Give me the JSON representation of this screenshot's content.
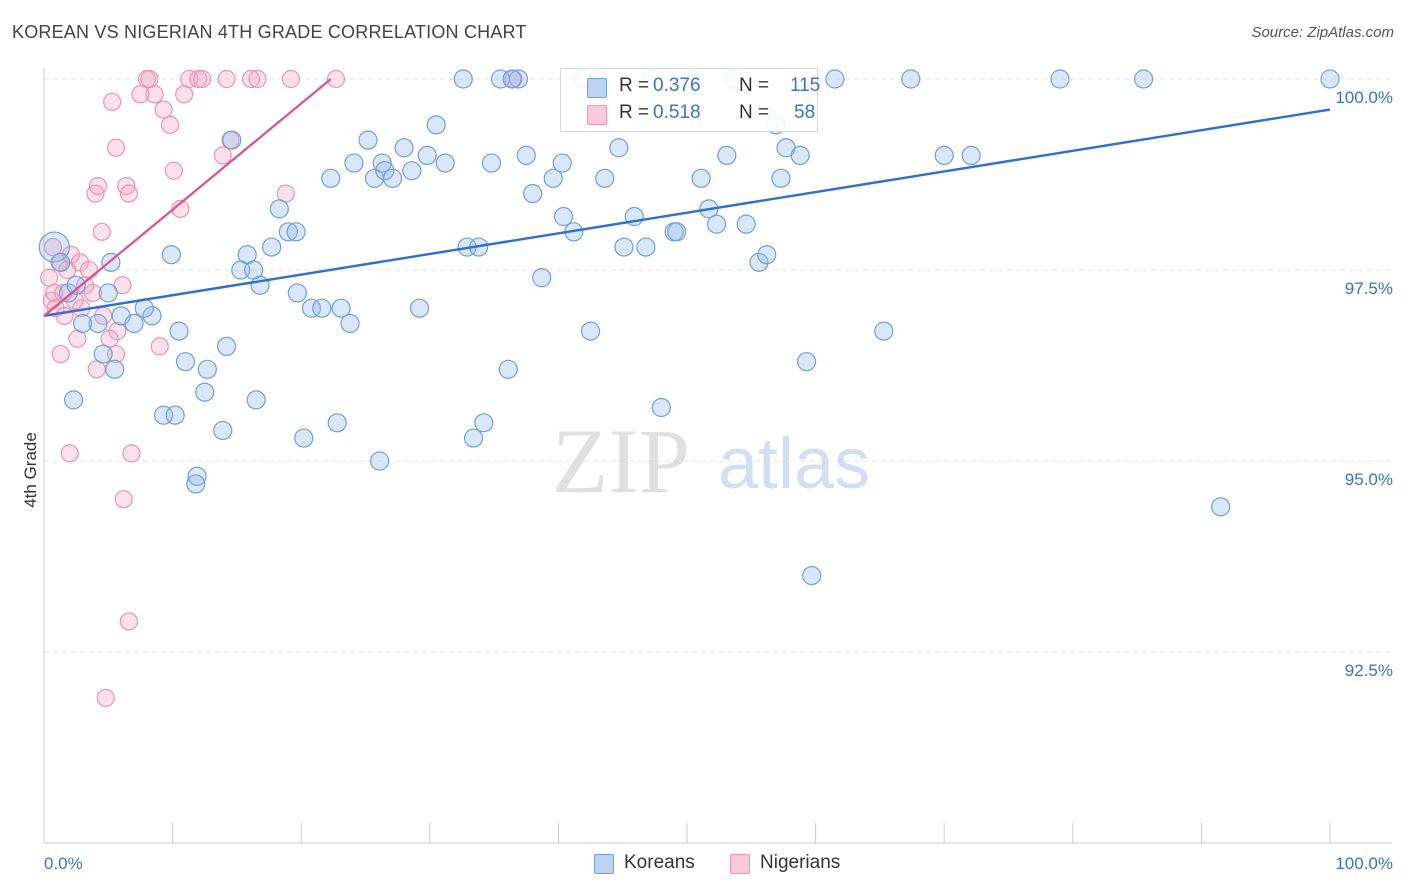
{
  "title": "KOREAN VS NIGERIAN 4TH GRADE CORRELATION CHART",
  "source": "Source: ZipAtlas.com",
  "watermark": {
    "zip": "ZIP",
    "atlas": "atlas"
  },
  "legend_top": {
    "rows": [
      {
        "r_label": "R =",
        "r_value": "0.376",
        "n_label": "N =",
        "n_value": "115"
      },
      {
        "r_label": "R =",
        "r_value": "0.518",
        "n_label": "N =",
        "n_value": "58"
      }
    ]
  },
  "legend_bottom": {
    "koreans": "Koreans",
    "nigerians": "Nigerians"
  },
  "chart_data": {
    "type": "scatter",
    "title": "KOREAN VS NIGERIAN 4TH GRADE CORRELATION CHART",
    "xlabel": "",
    "ylabel": "4th Grade",
    "xlim": [
      0,
      100
    ],
    "ylim": [
      90.2,
      100.2
    ],
    "x_tick_labels": [
      "0.0%",
      "100.0%"
    ],
    "y_ticks": [
      92.5,
      95.0,
      97.5,
      100.0
    ],
    "y_tick_labels": [
      "92.5%",
      "95.0%",
      "97.5%",
      "100.0%"
    ],
    "colors": {
      "koreans": "#6f9fe0",
      "nigerians": "#ef93b3",
      "koreans_line": "#2f6fd0",
      "nigerians_line": "#e0508a",
      "tick_label": "#3b73c9"
    },
    "series": [
      {
        "name": "Koreans",
        "r": 0.376,
        "n": 115,
        "trend": {
          "x1": 0,
          "y1": 96.9,
          "x2": 100,
          "y2": 99.6
        },
        "points": [
          [
            0.8,
            97.8
          ],
          [
            1.3,
            97.6
          ],
          [
            1.9,
            97.2
          ],
          [
            2.5,
            97.3
          ],
          [
            4.2,
            96.8
          ],
          [
            4.6,
            96.4
          ],
          [
            5.0,
            97.2
          ],
          [
            6.0,
            96.9
          ],
          [
            7.0,
            96.8
          ],
          [
            8.4,
            96.9
          ],
          [
            3.0,
            96.8
          ],
          [
            2.3,
            95.8
          ],
          [
            5.5,
            96.2
          ],
          [
            9.3,
            95.6
          ],
          [
            10.2,
            95.6
          ],
          [
            10.5,
            96.7
          ],
          [
            11.0,
            96.3
          ],
          [
            12.5,
            95.9
          ],
          [
            12.7,
            96.2
          ],
          [
            13.9,
            95.4
          ],
          [
            14.2,
            96.5
          ],
          [
            9.9,
            97.7
          ],
          [
            11.9,
            94.8
          ],
          [
            11.8,
            94.7
          ],
          [
            15.3,
            97.5
          ],
          [
            15.8,
            97.7
          ],
          [
            16.3,
            97.5
          ],
          [
            16.8,
            97.3
          ],
          [
            16.5,
            95.8
          ],
          [
            17.7,
            97.8
          ],
          [
            18.3,
            98.3
          ],
          [
            19.0,
            98.0
          ],
          [
            19.6,
            98.0
          ],
          [
            19.7,
            97.2
          ],
          [
            20.2,
            95.3
          ],
          [
            20.8,
            97.0
          ],
          [
            21.6,
            97.0
          ],
          [
            22.3,
            98.7
          ],
          [
            23.1,
            97.0
          ],
          [
            23.8,
            96.8
          ],
          [
            24.1,
            98.9
          ],
          [
            25.2,
            99.2
          ],
          [
            25.7,
            98.7
          ],
          [
            26.3,
            98.9
          ],
          [
            26.5,
            98.8
          ],
          [
            27.1,
            98.7
          ],
          [
            26.1,
            95.0
          ],
          [
            22.8,
            95.5
          ],
          [
            28.0,
            99.1
          ],
          [
            28.6,
            98.8
          ],
          [
            29.2,
            97.0
          ],
          [
            29.8,
            99.0
          ],
          [
            30.5,
            99.4
          ],
          [
            31.2,
            98.9
          ],
          [
            32.6,
            100.0
          ],
          [
            32.9,
            97.8
          ],
          [
            33.4,
            95.3
          ],
          [
            33.8,
            97.8
          ],
          [
            34.2,
            95.5
          ],
          [
            34.8,
            98.9
          ],
          [
            35.5,
            100.0
          ],
          [
            36.1,
            96.2
          ],
          [
            36.9,
            100.0
          ],
          [
            37.5,
            99.0
          ],
          [
            38.0,
            98.5
          ],
          [
            38.7,
            97.4
          ],
          [
            39.6,
            98.7
          ],
          [
            40.3,
            98.9
          ],
          [
            40.4,
            98.2
          ],
          [
            41.2,
            98.0
          ],
          [
            41.9,
            100.0
          ],
          [
            42.5,
            96.7
          ],
          [
            43.0,
            100.0
          ],
          [
            43.6,
            98.7
          ],
          [
            44.7,
            99.1
          ],
          [
            45.1,
            97.8
          ],
          [
            45.9,
            98.2
          ],
          [
            46.8,
            97.8
          ],
          [
            47.3,
            100.0
          ],
          [
            48.0,
            95.7
          ],
          [
            49.0,
            98.0
          ],
          [
            49.2,
            98.0
          ],
          [
            50.5,
            100.0
          ],
          [
            51.1,
            98.7
          ],
          [
            51.7,
            98.3
          ],
          [
            52.3,
            98.1
          ],
          [
            53.1,
            99.0
          ],
          [
            53.7,
            100.0
          ],
          [
            54.6,
            98.1
          ],
          [
            55.6,
            97.6
          ],
          [
            56.2,
            97.7
          ],
          [
            56.9,
            99.4
          ],
          [
            57.3,
            98.7
          ],
          [
            57.7,
            99.1
          ],
          [
            58.8,
            99.0
          ],
          [
            59.3,
            96.3
          ],
          [
            59.7,
            93.5
          ],
          [
            61.5,
            100.0
          ],
          [
            65.3,
            96.7
          ],
          [
            67.4,
            100.0
          ],
          [
            70.0,
            99.0
          ],
          [
            72.1,
            99.0
          ],
          [
            79.0,
            100.0
          ],
          [
            85.5,
            100.0
          ],
          [
            91.5,
            94.4
          ],
          [
            100.0,
            100.0
          ],
          [
            5.2,
            97.6
          ],
          [
            7.8,
            97.0
          ],
          [
            14.6,
            99.2
          ],
          [
            36.4,
            100.0
          ]
        ]
      },
      {
        "name": "Nigerians",
        "r": 0.518,
        "n": 58,
        "trend": {
          "x1": 0,
          "y1": 96.9,
          "x2": 22.3,
          "y2": 100.0
        },
        "points": [
          [
            0.4,
            97.4
          ],
          [
            0.6,
            97.1
          ],
          [
            0.8,
            97.2
          ],
          [
            1.2,
            97.6
          ],
          [
            1.5,
            97.2
          ],
          [
            1.8,
            97.5
          ],
          [
            2.1,
            97.7
          ],
          [
            2.4,
            97.1
          ],
          [
            2.8,
            97.6
          ],
          [
            3.2,
            97.3
          ],
          [
            3.5,
            97.5
          ],
          [
            3.8,
            97.2
          ],
          [
            0.9,
            97.0
          ],
          [
            1.6,
            96.9
          ],
          [
            2.9,
            97.0
          ],
          [
            4.6,
            96.9
          ],
          [
            5.7,
            96.7
          ],
          [
            6.1,
            97.3
          ],
          [
            1.3,
            96.4
          ],
          [
            2.6,
            96.6
          ],
          [
            4.1,
            96.2
          ],
          [
            5.1,
            96.6
          ],
          [
            5.6,
            96.4
          ],
          [
            9.0,
            96.5
          ],
          [
            4.0,
            98.5
          ],
          [
            4.2,
            98.6
          ],
          [
            6.4,
            98.6
          ],
          [
            6.6,
            98.5
          ],
          [
            8.6,
            99.8
          ],
          [
            9.3,
            99.6
          ],
          [
            9.8,
            99.4
          ],
          [
            10.1,
            98.8
          ],
          [
            10.6,
            98.3
          ],
          [
            10.9,
            99.8
          ],
          [
            11.3,
            100.0
          ],
          [
            12.0,
            100.0
          ],
          [
            12.3,
            100.0
          ],
          [
            13.9,
            99.0
          ],
          [
            14.5,
            99.2
          ],
          [
            14.2,
            100.0
          ],
          [
            16.1,
            100.0
          ],
          [
            16.6,
            100.0
          ],
          [
            18.8,
            98.5
          ],
          [
            19.2,
            100.0
          ],
          [
            22.7,
            100.0
          ],
          [
            5.3,
            99.7
          ],
          [
            5.6,
            99.1
          ],
          [
            7.5,
            99.8
          ],
          [
            8.0,
            100.0
          ],
          [
            8.2,
            100.0
          ],
          [
            2.0,
            95.1
          ],
          [
            6.8,
            95.1
          ],
          [
            6.2,
            94.5
          ],
          [
            6.6,
            92.9
          ],
          [
            4.8,
            91.9
          ],
          [
            4.5,
            98.0
          ],
          [
            36.5,
            100.0
          ],
          [
            0.7,
            97.8
          ]
        ]
      }
    ]
  }
}
